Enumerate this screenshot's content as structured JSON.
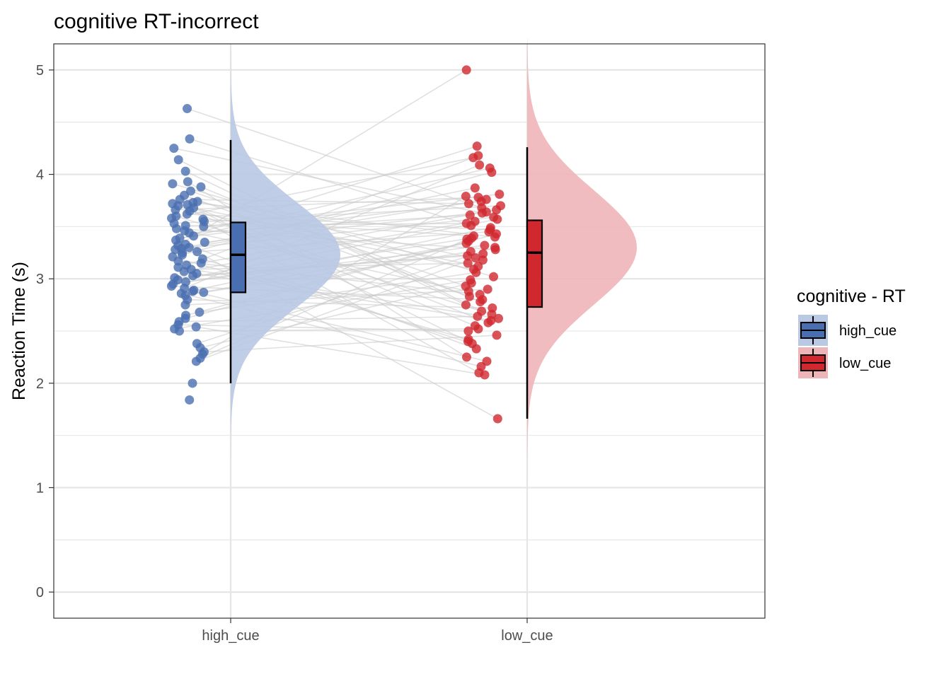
{
  "chart_data": {
    "type": "raincloud",
    "title": "cognitive RT-incorrect",
    "xlabel": "",
    "ylabel": "Reaction Time (s)",
    "categories": [
      "high_cue",
      "low_cue"
    ],
    "yticks": [
      "0",
      "1",
      "2",
      "3",
      "4",
      "5"
    ],
    "ylim": [
      -0.25,
      5.25
    ],
    "grid": true,
    "legend": {
      "title": "cognitive  - RT",
      "placement": "right",
      "entries": [
        "high_cue",
        "low_cue"
      ]
    },
    "colors": {
      "high_cue": "#4a6fb0",
      "high_cue_fill": "#b9c8e3",
      "low_cue": "#d0282e",
      "low_cue_fill": "#eeb5b8",
      "grid": "#e5e5e5",
      "pair_line": "#cccccc",
      "panel_border": "#333333"
    },
    "series": [
      {
        "name": "high_cue",
        "box": {
          "min": 2.0,
          "q1": 2.87,
          "median": 3.23,
          "q3": 3.54,
          "max": 4.33
        },
        "density": {
          "mean": 3.23,
          "sd": 0.5,
          "min": 1.3,
          "max": 5.2
        },
        "points": [
          4.63,
          4.34,
          4.25,
          4.14,
          4.03,
          3.93,
          3.91,
          3.88,
          3.84,
          3.8,
          3.76,
          3.74,
          3.73,
          3.72,
          3.71,
          3.7,
          3.68,
          3.66,
          3.65,
          3.62,
          3.6,
          3.58,
          3.57,
          3.55,
          3.53,
          3.51,
          3.5,
          3.48,
          3.46,
          3.44,
          3.41,
          3.39,
          3.37,
          3.35,
          3.33,
          3.32,
          3.3,
          3.29,
          3.28,
          3.26,
          3.25,
          3.23,
          3.21,
          3.19,
          3.17,
          3.15,
          3.13,
          3.11,
          3.09,
          3.07,
          3.05,
          3.03,
          3.01,
          2.99,
          2.97,
          2.95,
          2.93,
          2.91,
          2.89,
          2.88,
          2.87,
          2.86,
          2.84,
          2.8,
          2.75,
          2.68,
          2.65,
          2.62,
          2.59,
          2.56,
          2.54,
          2.52,
          2.5,
          2.38,
          2.34,
          2.3,
          2.28,
          2.24,
          2.21,
          2.0,
          1.84
        ]
      },
      {
        "name": "low_cue",
        "box": {
          "min": 1.66,
          "q1": 2.73,
          "median": 3.25,
          "q3": 3.56,
          "max": 4.26
        },
        "density": {
          "mean": 3.3,
          "sd": 0.55,
          "min": 1.0,
          "max": 5.3
        },
        "points": [
          5.0,
          4.27,
          4.18,
          4.16,
          4.09,
          4.06,
          4.02,
          3.87,
          3.81,
          3.79,
          3.78,
          3.76,
          3.74,
          3.72,
          3.7,
          3.68,
          3.66,
          3.64,
          3.63,
          3.61,
          3.59,
          3.57,
          3.55,
          3.53,
          3.51,
          3.49,
          3.47,
          3.45,
          3.43,
          3.41,
          3.4,
          3.39,
          3.38,
          3.36,
          3.34,
          3.32,
          3.3,
          3.28,
          3.26,
          3.24,
          3.22,
          3.2,
          3.18,
          3.15,
          3.12,
          3.09,
          3.06,
          3.02,
          2.99,
          2.96,
          2.93,
          2.9,
          2.88,
          2.85,
          2.83,
          2.8,
          2.78,
          2.75,
          2.72,
          2.69,
          2.66,
          2.64,
          2.62,
          2.6,
          2.58,
          2.55,
          2.52,
          2.5,
          2.46,
          2.42,
          2.4,
          2.38,
          2.33,
          2.25,
          2.21,
          2.16,
          2.1,
          2.08,
          1.66
        ]
      }
    ]
  }
}
